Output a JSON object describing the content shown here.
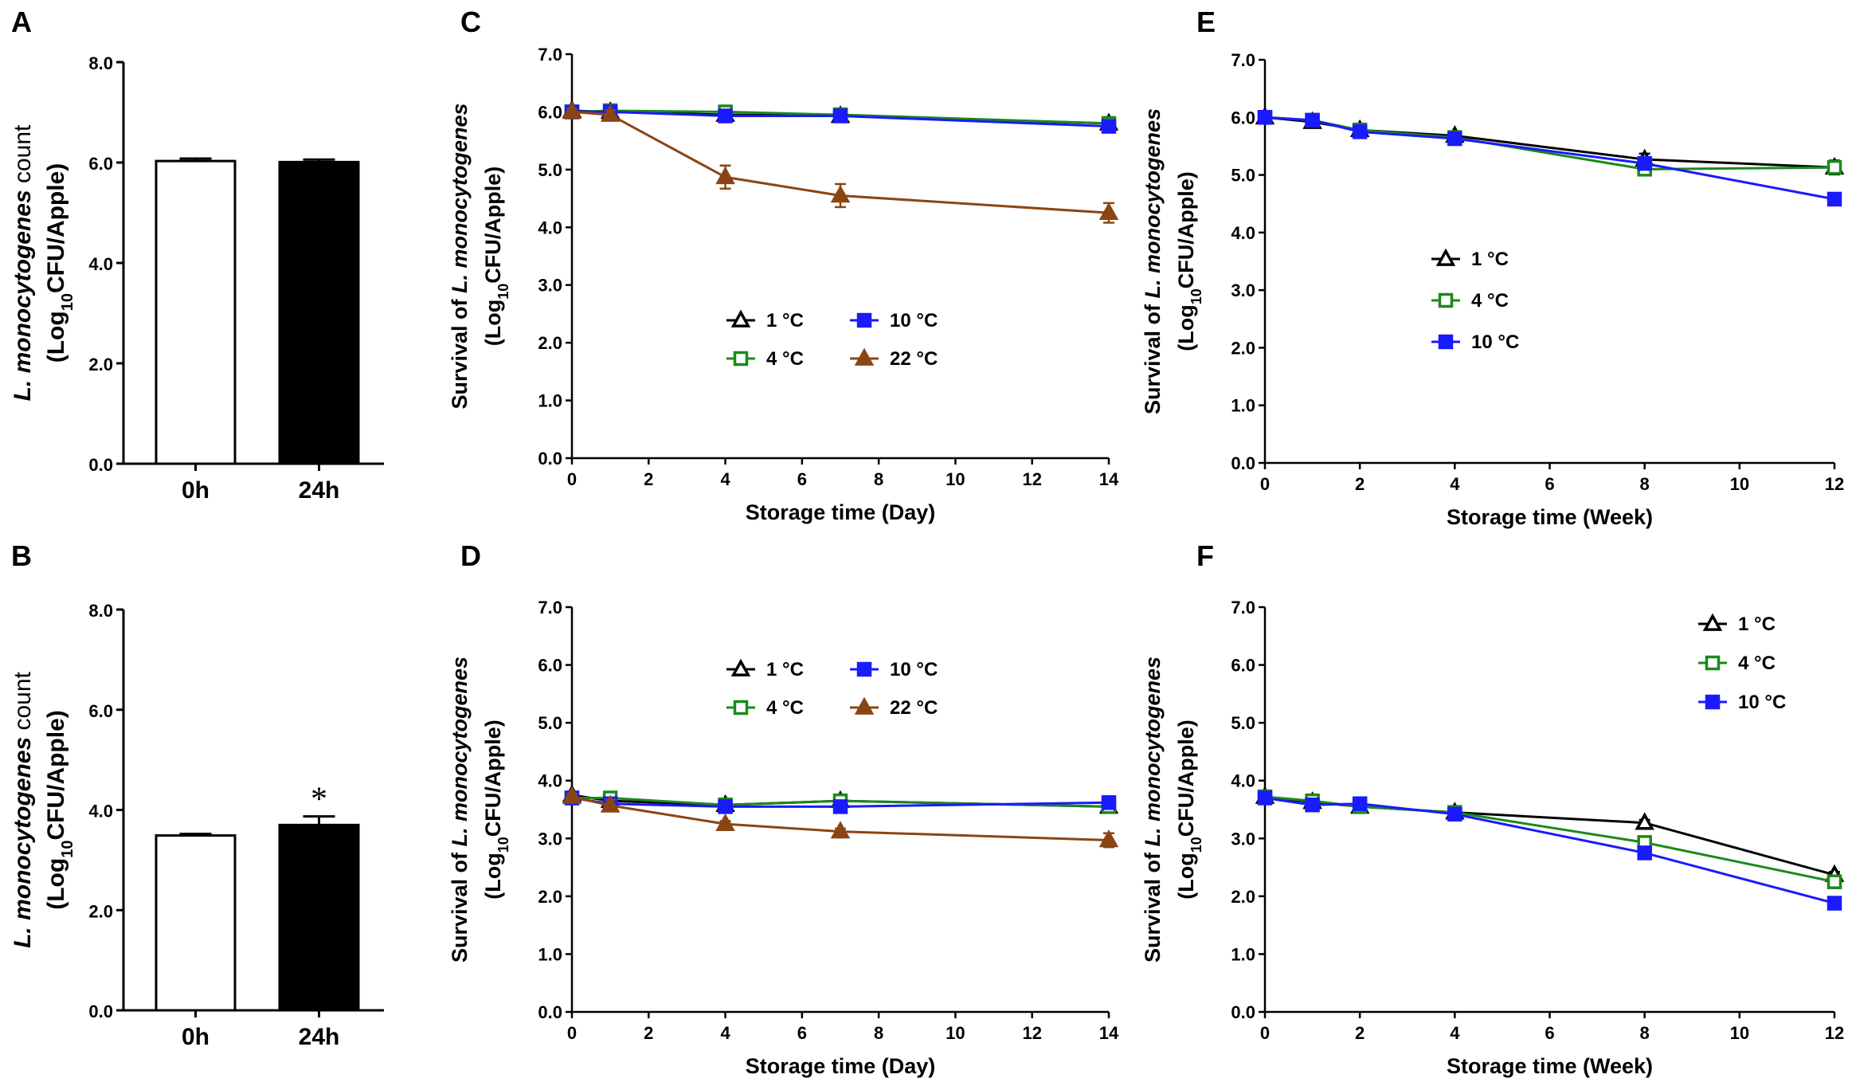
{
  "figure": {
    "bar_ylabel_species": "L. monocytogenes",
    "bar_ylabel_word": " count",
    "line_ylabel_prefix": "Survival of ",
    "line_ylabel_species": "L. monocytogenes",
    "ylabel_line2_pre": "(Log",
    "ylabel_line2_sub": "10",
    "ylabel_line2_post": "CFU/Apple)",
    "colors": {
      "c1": "#000000",
      "c4": "#1a8a1a",
      "c10": "#1a1aff",
      "c22": "#8b4513"
    }
  },
  "chart_data": [
    {
      "panel": "A",
      "type": "bar",
      "categories": [
        "0h",
        "24h"
      ],
      "values": [
        6.03,
        6.01
      ],
      "errors": [
        0.05,
        0.05
      ],
      "fills": [
        "#ffffff",
        "#000000"
      ],
      "ylim": [
        0,
        8
      ],
      "yticks": [
        "0.0",
        "2.0",
        "4.0",
        "6.0",
        "8.0"
      ],
      "annotations": []
    },
    {
      "panel": "B",
      "type": "bar",
      "categories": [
        "0h",
        "24h"
      ],
      "values": [
        3.49,
        3.7
      ],
      "errors": [
        0.03,
        0.17
      ],
      "fills": [
        "#ffffff",
        "#000000"
      ],
      "ylim": [
        0,
        8
      ],
      "yticks": [
        "0.0",
        "2.0",
        "4.0",
        "6.0",
        "8.0"
      ],
      "annotations": [
        "*"
      ]
    },
    {
      "panel": "C",
      "type": "line",
      "xlabel": "Storage time (Day)",
      "xlim": [
        0,
        14
      ],
      "xticks": [
        "0",
        "2",
        "4",
        "6",
        "8",
        "10",
        "12",
        "14"
      ],
      "ylim": [
        0,
        7
      ],
      "yticks": [
        "0.0",
        "1.0",
        "2.0",
        "3.0",
        "4.0",
        "5.0",
        "6.0",
        "7.0"
      ],
      "x": [
        0,
        1,
        4,
        7,
        14
      ],
      "series": [
        {
          "name": "1 °C",
          "marker": "tri-open",
          "color": "#000000",
          "values": [
            6.02,
            6.0,
            5.95,
            5.93,
            5.8
          ],
          "errors": [
            0.04,
            0.04,
            0.05,
            0.05,
            0.05
          ]
        },
        {
          "name": "4 °C",
          "marker": "sq-open",
          "color": "#1a8a1a",
          "values": [
            6.0,
            6.02,
            6.0,
            5.95,
            5.8
          ],
          "errors": [
            0.04,
            0.04,
            0.04,
            0.04,
            0.04
          ]
        },
        {
          "name": "10 °C",
          "marker": "sq-fill",
          "color": "#1a1aff",
          "values": [
            6.0,
            6.0,
            5.93,
            5.93,
            5.75
          ],
          "errors": [
            0.04,
            0.04,
            0.05,
            0.05,
            0.05
          ]
        },
        {
          "name": "22 °C",
          "marker": "tri-fill",
          "color": "#8b4513",
          "values": [
            6.0,
            5.95,
            4.87,
            4.55,
            4.25
          ],
          "errors": [
            0.05,
            0.08,
            0.2,
            0.2,
            0.17
          ]
        }
      ],
      "legend_cols": 2
    },
    {
      "panel": "D",
      "type": "line",
      "xlabel": "Storage time (Day)",
      "xlim": [
        0,
        14
      ],
      "xticks": [
        "0",
        "2",
        "4",
        "6",
        "8",
        "10",
        "12",
        "14"
      ],
      "ylim": [
        0,
        7
      ],
      "yticks": [
        "0.0",
        "1.0",
        "2.0",
        "3.0",
        "4.0",
        "5.0",
        "6.0",
        "7.0"
      ],
      "x": [
        0,
        1,
        4,
        7,
        14
      ],
      "series": [
        {
          "name": "1 °C",
          "marker": "tri-open",
          "color": "#000000",
          "values": [
            3.75,
            3.65,
            3.58,
            3.65,
            3.55
          ],
          "errors": [
            0.05,
            0.05,
            0.05,
            0.05,
            0.05
          ]
        },
        {
          "name": "4 °C",
          "marker": "sq-open",
          "color": "#1a8a1a",
          "values": [
            3.7,
            3.7,
            3.58,
            3.65,
            3.55
          ],
          "errors": [
            0.05,
            0.05,
            0.05,
            0.05,
            0.05
          ]
        },
        {
          "name": "10 °C",
          "marker": "sq-fill",
          "color": "#1a1aff",
          "values": [
            3.7,
            3.6,
            3.55,
            3.55,
            3.62
          ],
          "errors": [
            0.05,
            0.05,
            0.05,
            0.05,
            0.05
          ]
        },
        {
          "name": "22 °C",
          "marker": "tri-fill",
          "color": "#8b4513",
          "values": [
            3.72,
            3.57,
            3.25,
            3.12,
            2.97
          ],
          "errors": [
            0.05,
            0.1,
            0.05,
            0.05,
            0.12
          ]
        }
      ],
      "legend_cols": 2
    },
    {
      "panel": "E",
      "type": "line",
      "xlabel": "Storage time (Week)",
      "xlim": [
        0,
        12
      ],
      "xticks": [
        "0",
        "2",
        "4",
        "6",
        "8",
        "10",
        "12"
      ],
      "ylim": [
        0,
        7
      ],
      "yticks": [
        "0.0",
        "1.0",
        "2.0",
        "3.0",
        "4.0",
        "5.0",
        "6.0",
        "7.0"
      ],
      "x": [
        0,
        1,
        2,
        4,
        8,
        12
      ],
      "series": [
        {
          "name": "1 °C",
          "marker": "tri-open",
          "color": "#000000",
          "values": [
            6.0,
            5.92,
            5.78,
            5.68,
            5.27,
            5.13
          ],
          "errors": [
            0.05,
            0.08,
            0.06,
            0.06,
            0.1,
            0.12
          ]
        },
        {
          "name": "4 °C",
          "marker": "sq-open",
          "color": "#1a8a1a",
          "values": [
            6.0,
            5.95,
            5.78,
            5.65,
            5.1,
            5.13
          ],
          "errors": [
            0.05,
            0.05,
            0.05,
            0.05,
            0.05,
            0.05
          ]
        },
        {
          "name": "10 °C",
          "marker": "sq-fill",
          "color": "#1a1aff",
          "values": [
            6.0,
            5.95,
            5.75,
            5.63,
            5.2,
            4.58
          ],
          "errors": [
            0.05,
            0.05,
            0.05,
            0.05,
            0.05,
            0.05
          ]
        }
      ],
      "legend_cols": 1
    },
    {
      "panel": "F",
      "type": "line",
      "xlabel": "Storage time (Week)",
      "xlim": [
        0,
        12
      ],
      "xticks": [
        "0",
        "2",
        "4",
        "6",
        "8",
        "10",
        "12"
      ],
      "ylim": [
        0,
        7
      ],
      "yticks": [
        "0.0",
        "1.0",
        "2.0",
        "3.0",
        "4.0",
        "5.0",
        "6.0",
        "7.0"
      ],
      "x": [
        0,
        1,
        2,
        4,
        8,
        12
      ],
      "series": [
        {
          "name": "1 °C",
          "marker": "tri-open",
          "color": "#000000",
          "values": [
            3.72,
            3.63,
            3.55,
            3.45,
            3.27,
            2.37
          ],
          "errors": [
            0.05,
            0.05,
            0.05,
            0.05,
            0.05,
            0.05
          ]
        },
        {
          "name": "4 °C",
          "marker": "sq-open",
          "color": "#1a8a1a",
          "values": [
            3.72,
            3.65,
            3.55,
            3.45,
            2.93,
            2.25
          ],
          "errors": [
            0.05,
            0.05,
            0.05,
            0.05,
            0.05,
            0.05
          ]
        },
        {
          "name": "10 °C",
          "marker": "sq-fill",
          "color": "#1a1aff",
          "values": [
            3.7,
            3.58,
            3.6,
            3.42,
            2.75,
            1.88
          ],
          "errors": [
            0.05,
            0.05,
            0.05,
            0.05,
            0.05,
            0.05
          ]
        }
      ],
      "legend_cols": 1
    }
  ]
}
